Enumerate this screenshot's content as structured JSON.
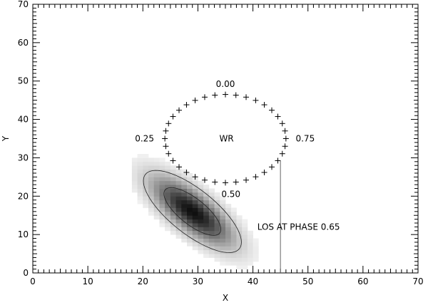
{
  "chart_data": {
    "type": "scatter",
    "title": "",
    "xlabel": "X",
    "ylabel": "Y",
    "xlim": [
      0,
      70
    ],
    "ylim": [
      0,
      70
    ],
    "x_ticks": [
      0,
      10,
      20,
      30,
      40,
      50,
      60,
      70
    ],
    "y_ticks": [
      0,
      10,
      20,
      30,
      40,
      50,
      60,
      70
    ],
    "grid": false,
    "orbit": {
      "center": [
        35,
        35
      ],
      "rx": 11,
      "ry": 11.5,
      "markers": 36,
      "marker": "plus"
    },
    "annotations": [
      {
        "text": "0.00",
        "x": 35,
        "y": 49.2
      },
      {
        "text": "0.25",
        "x": 20.3,
        "y": 35
      },
      {
        "text": "0.75",
        "x": 49.5,
        "y": 35
      },
      {
        "text": "0.50",
        "x": 36,
        "y": 20.5
      },
      {
        "text": "WR",
        "x": 35.2,
        "y": 35
      },
      {
        "text": "LOS AT PHASE 0.65",
        "x": 48.3,
        "y": 12
      }
    ],
    "los_line": {
      "x": 45,
      "y_from": 0,
      "y_to": 29.2
    },
    "emission": {
      "type": "heatmap",
      "center": [
        29,
        16
      ],
      "sigma_major": 7.5,
      "sigma_minor": 2.8,
      "angle_deg": -52,
      "contours": [
        0.22,
        0.6
      ]
    }
  }
}
